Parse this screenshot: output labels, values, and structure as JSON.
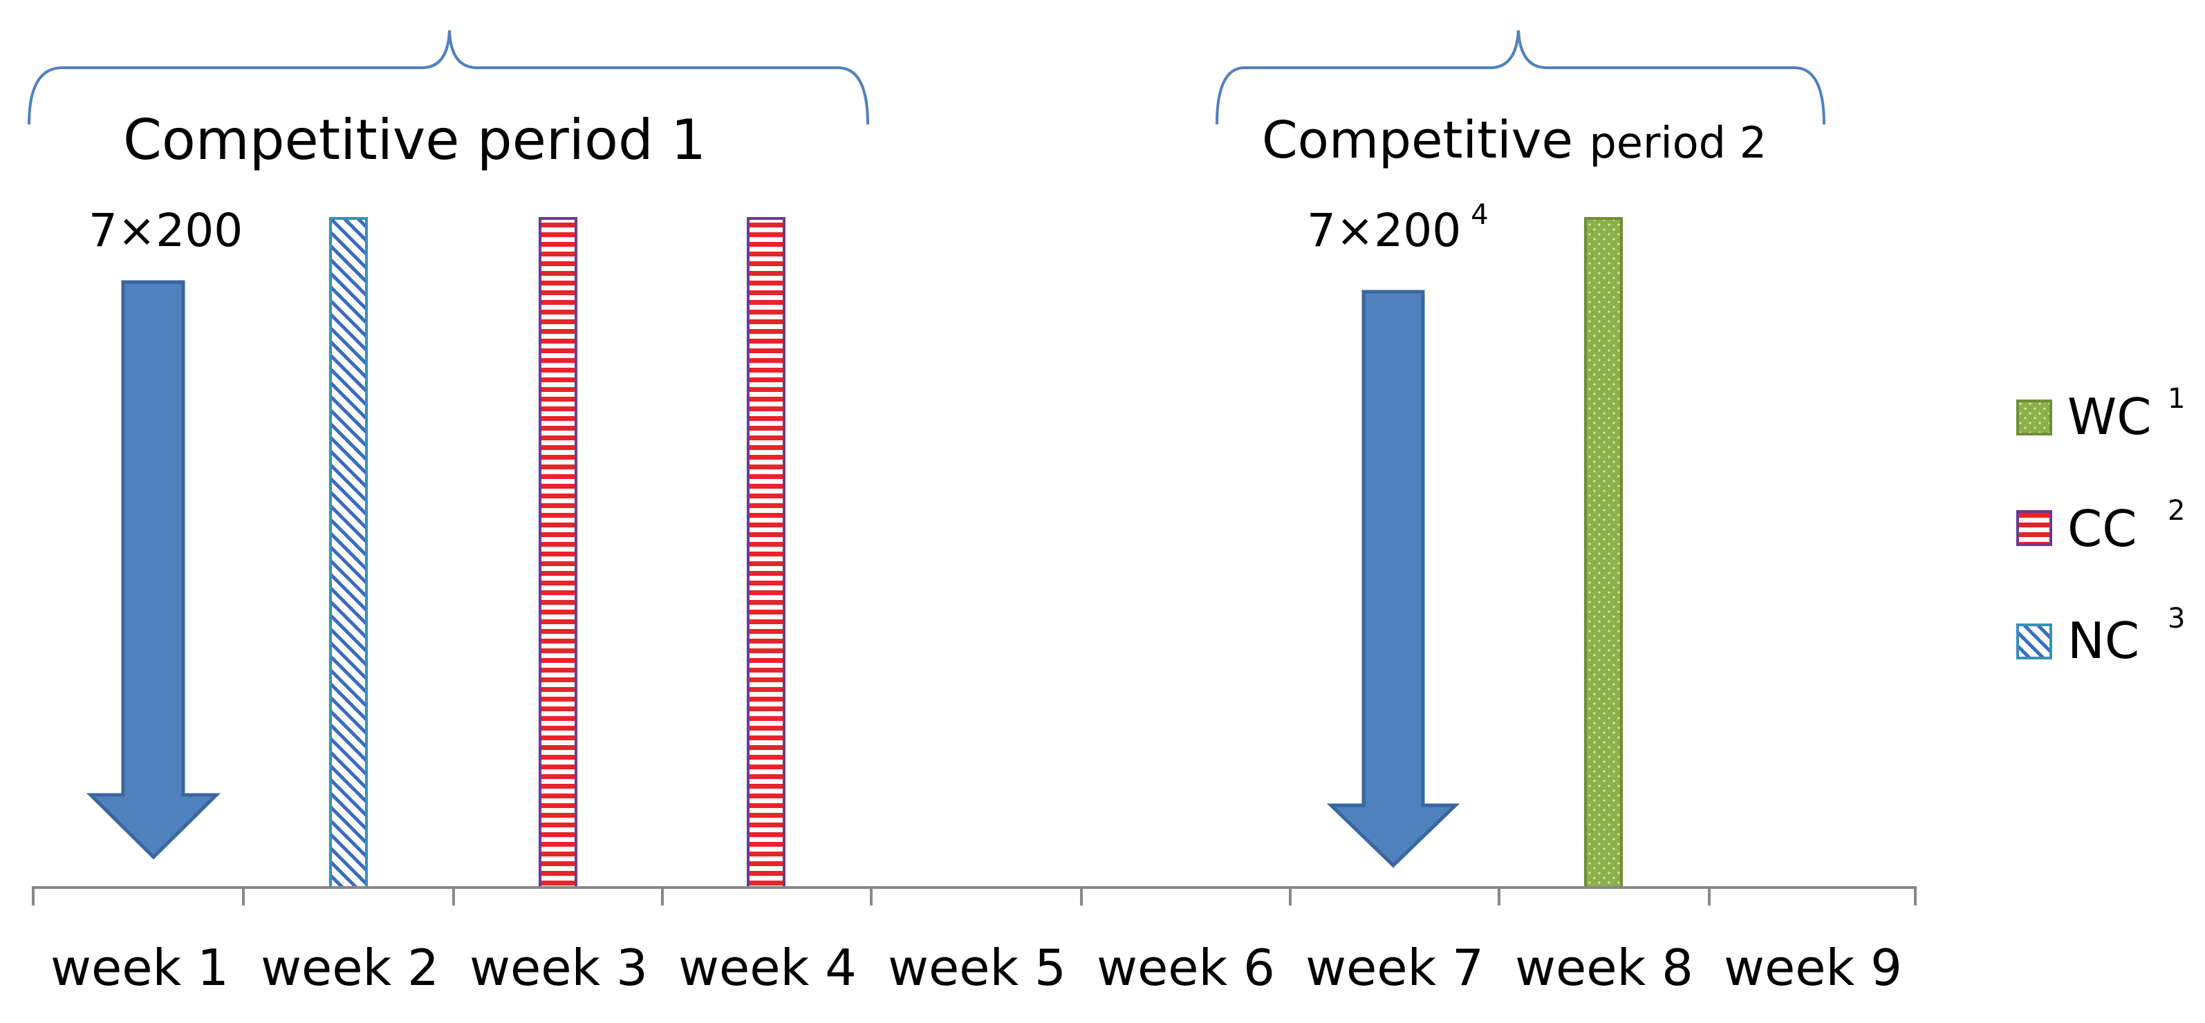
{
  "periods": [
    {
      "label_main": "Competitive period  1",
      "label_small": ""
    },
    {
      "label_main": "Competitive ",
      "label_small": "period 2"
    }
  ],
  "arrows": [
    {
      "label": "7×200",
      "sup": "",
      "week": 1
    },
    {
      "label": "7×200",
      "sup": "4",
      "week": 7
    }
  ],
  "events": [
    {
      "type": "NC",
      "week": 2
    },
    {
      "type": "CC",
      "week": 3
    },
    {
      "type": "CC",
      "week": 4
    },
    {
      "type": "WC",
      "week": 8
    }
  ],
  "weeks": [
    "week 1",
    "week 2",
    "week 3",
    "week 4",
    "week 5",
    "week 6",
    "week 7",
    "week 8",
    "week 9"
  ],
  "legend": [
    {
      "key": "WC",
      "label": "WC",
      "sup": "1",
      "color": "#8db04a"
    },
    {
      "key": "CC",
      "label": "CC",
      "sup": "2",
      "color": "#e8232a"
    },
    {
      "key": "NC",
      "label": "NC",
      "sup": "3",
      "color": "#3a8fb7"
    }
  ],
  "colors": {
    "arrow": "#4f81bd",
    "arrow_stroke": "#3a66a0",
    "brace": "#4f81bd",
    "axis": "#888888"
  }
}
